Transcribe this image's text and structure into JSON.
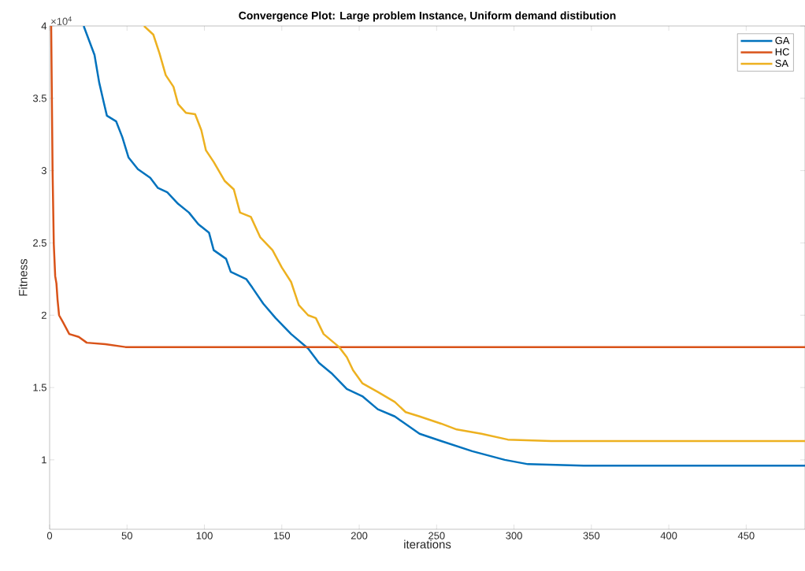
{
  "chart_data": {
    "type": "line",
    "title": "Convergence Plot: Large problem Instance, Uniform demand distibution",
    "xlabel": "iterations",
    "ylabel": "Fitness",
    "annotations": [
      "×10$^{4}$"
    ],
    "xlim": [
      0,
      488
    ],
    "ylim": [
      0.52,
      4
    ],
    "xticks": [
      0,
      50,
      100,
      150,
      200,
      250,
      300,
      350,
      400,
      450
    ],
    "yticks": [
      1,
      1.5,
      2,
      2.5,
      3,
      3.5,
      4
    ],
    "legend": "top right",
    "series": [
      {
        "name": "GA",
        "color": "#0072bd",
        "x": [
          22,
          29,
          32,
          35,
          37,
          43,
          47,
          51,
          57,
          65,
          70,
          76,
          83,
          90,
          96,
          103,
          106,
          114,
          117,
          127,
          131,
          138,
          146,
          156,
          167,
          174,
          182,
          192,
          202,
          212,
          223,
          239,
          253,
          273,
          294,
          309,
          345,
          488
        ],
        "values": [
          4.0,
          3.8,
          3.61,
          3.47,
          3.38,
          3.34,
          3.23,
          3.09,
          3.01,
          2.95,
          2.88,
          2.85,
          2.77,
          2.71,
          2.63,
          2.57,
          2.45,
          2.39,
          2.3,
          2.25,
          2.19,
          2.08,
          1.98,
          1.87,
          1.77,
          1.67,
          1.6,
          1.49,
          1.44,
          1.35,
          1.3,
          1.18,
          1.13,
          1.06,
          1.0,
          0.97,
          0.96,
          0.96
        ]
      },
      {
        "name": "HC",
        "color": "#d95319",
        "x": [
          1,
          1.9,
          2.7,
          3.6,
          4.4,
          5.1,
          6.1,
          8.7,
          12.7,
          18.8,
          24,
          36,
          49,
          488
        ],
        "values": [
          4.0,
          3.0,
          2.49,
          2.27,
          2.22,
          2.11,
          2.0,
          1.95,
          1.87,
          1.85,
          1.81,
          1.8,
          1.78,
          1.78
        ]
      },
      {
        "name": "SA",
        "color": "#edb120",
        "x": [
          61,
          67,
          71,
          75,
          80,
          83,
          88,
          94,
          98,
          101,
          106,
          113,
          119,
          123,
          130,
          136,
          144,
          150,
          156,
          161,
          167,
          172,
          177,
          187,
          192,
          196,
          202,
          212,
          223,
          230,
          239,
          253,
          263,
          279,
          296,
          324,
          488
        ],
        "values": [
          4.0,
          3.94,
          3.81,
          3.66,
          3.58,
          3.46,
          3.4,
          3.39,
          3.28,
          3.14,
          3.06,
          2.93,
          2.87,
          2.71,
          2.68,
          2.54,
          2.45,
          2.33,
          2.23,
          2.07,
          2.0,
          1.98,
          1.87,
          1.78,
          1.71,
          1.62,
          1.53,
          1.47,
          1.4,
          1.33,
          1.3,
          1.25,
          1.21,
          1.18,
          1.14,
          1.13,
          1.13
        ]
      }
    ]
  }
}
